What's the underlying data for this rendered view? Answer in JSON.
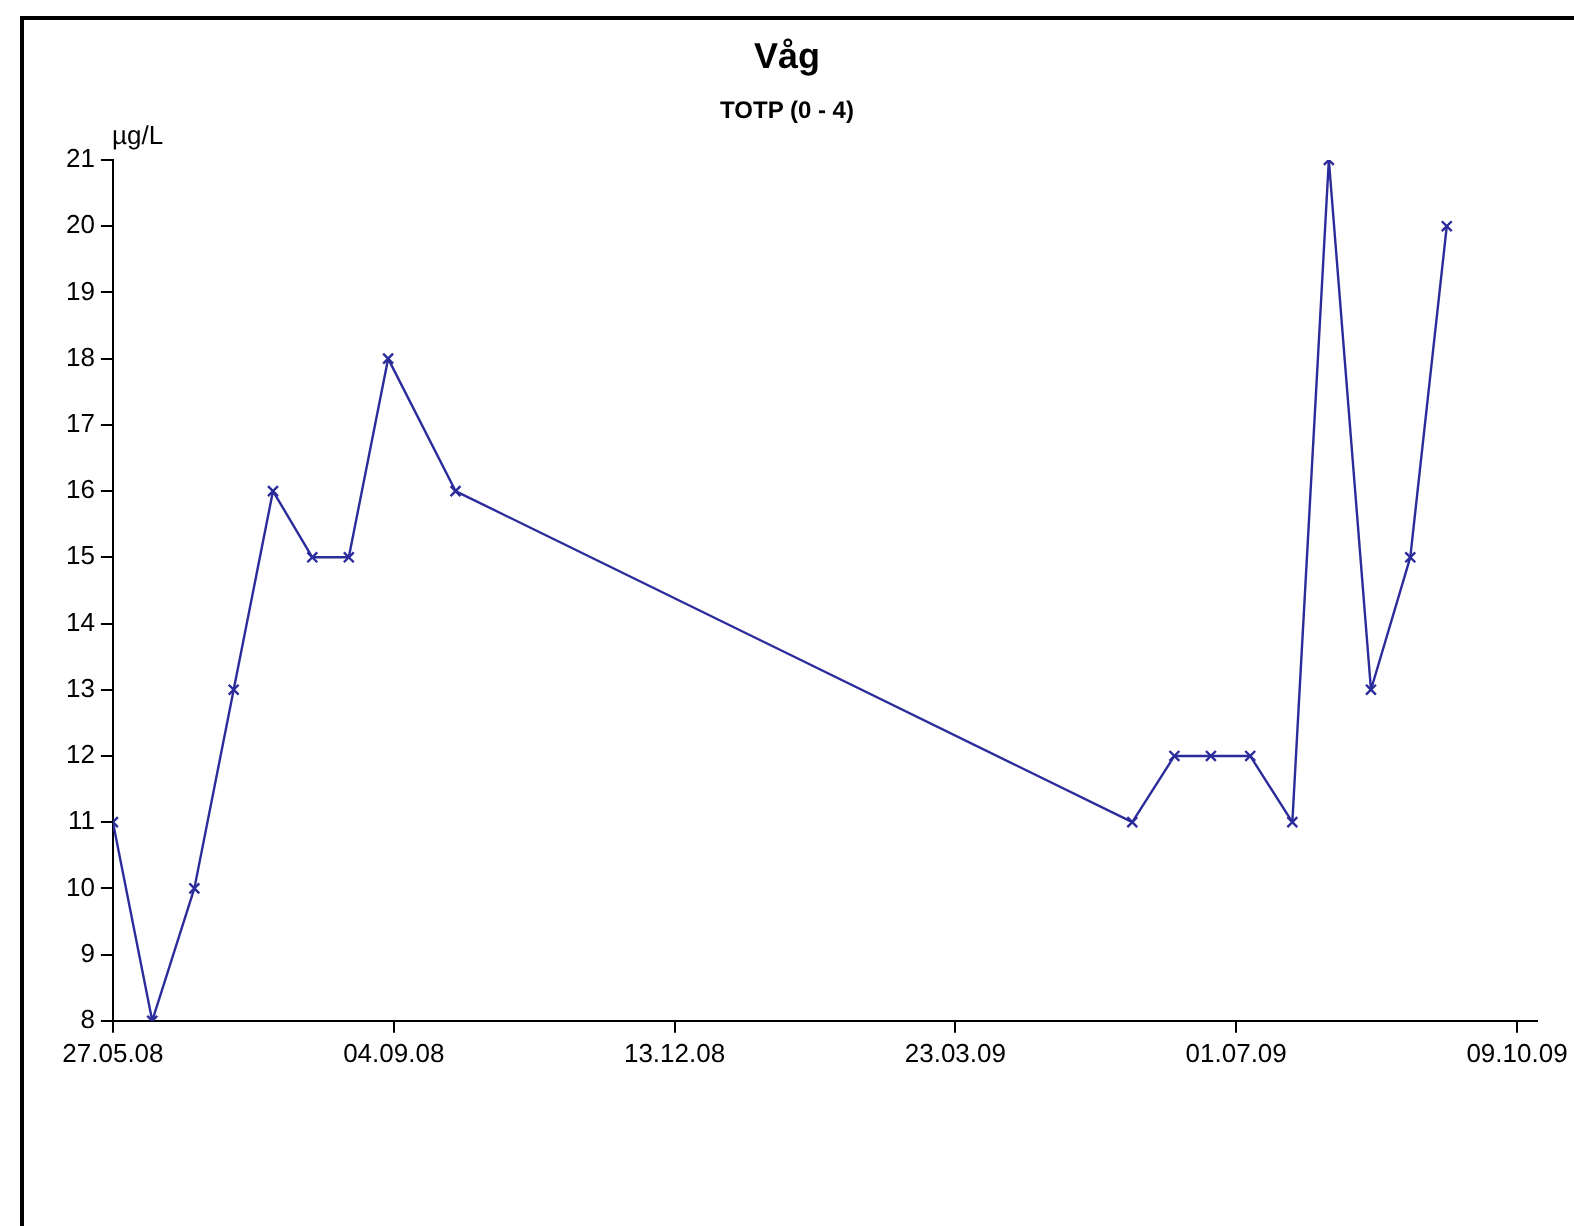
{
  "chart_data": {
    "type": "line",
    "title": "Våg",
    "subtitle": "TOTP (0 - 4)",
    "ylabel": "µg/L",
    "x": [
      "2008-05-27",
      "2008-06-10",
      "2008-06-25",
      "2008-07-09",
      "2008-07-23",
      "2008-08-06",
      "2008-08-19",
      "2008-09-02",
      "2008-09-26",
      "2009-05-25",
      "2009-06-09",
      "2009-06-22",
      "2009-07-06",
      "2009-07-21",
      "2009-08-03",
      "2009-08-18",
      "2009-09-01",
      "2009-09-14"
    ],
    "series": [
      {
        "color": "#2b2b9b",
        "values": [
          11,
          8,
          10,
          13,
          16,
          15,
          15,
          18,
          16,
          11,
          12,
          12,
          12,
          11,
          21,
          13,
          15,
          20
        ]
      }
    ],
    "xlim": [
      "2008-05-27",
      "2009-10-16"
    ],
    "xticks": [
      {
        "value": "2008-05-27",
        "label": "27.05.08"
      },
      {
        "value": "2008-09-04",
        "label": "04.09.08"
      },
      {
        "value": "2008-12-13",
        "label": "13.12.08"
      },
      {
        "value": "2009-03-23",
        "label": "23.03.09"
      },
      {
        "value": "2009-07-01",
        "label": "01.07.09"
      },
      {
        "value": "2009-10-09",
        "label": "09.10.09"
      }
    ],
    "ylim": [
      8,
      21
    ],
    "yticks": [
      8,
      9,
      10,
      11,
      12,
      13,
      14,
      15,
      16,
      17,
      18,
      19,
      20,
      21
    ],
    "grid": false,
    "legend": false,
    "marker": "cross",
    "line_style": "solid"
  }
}
